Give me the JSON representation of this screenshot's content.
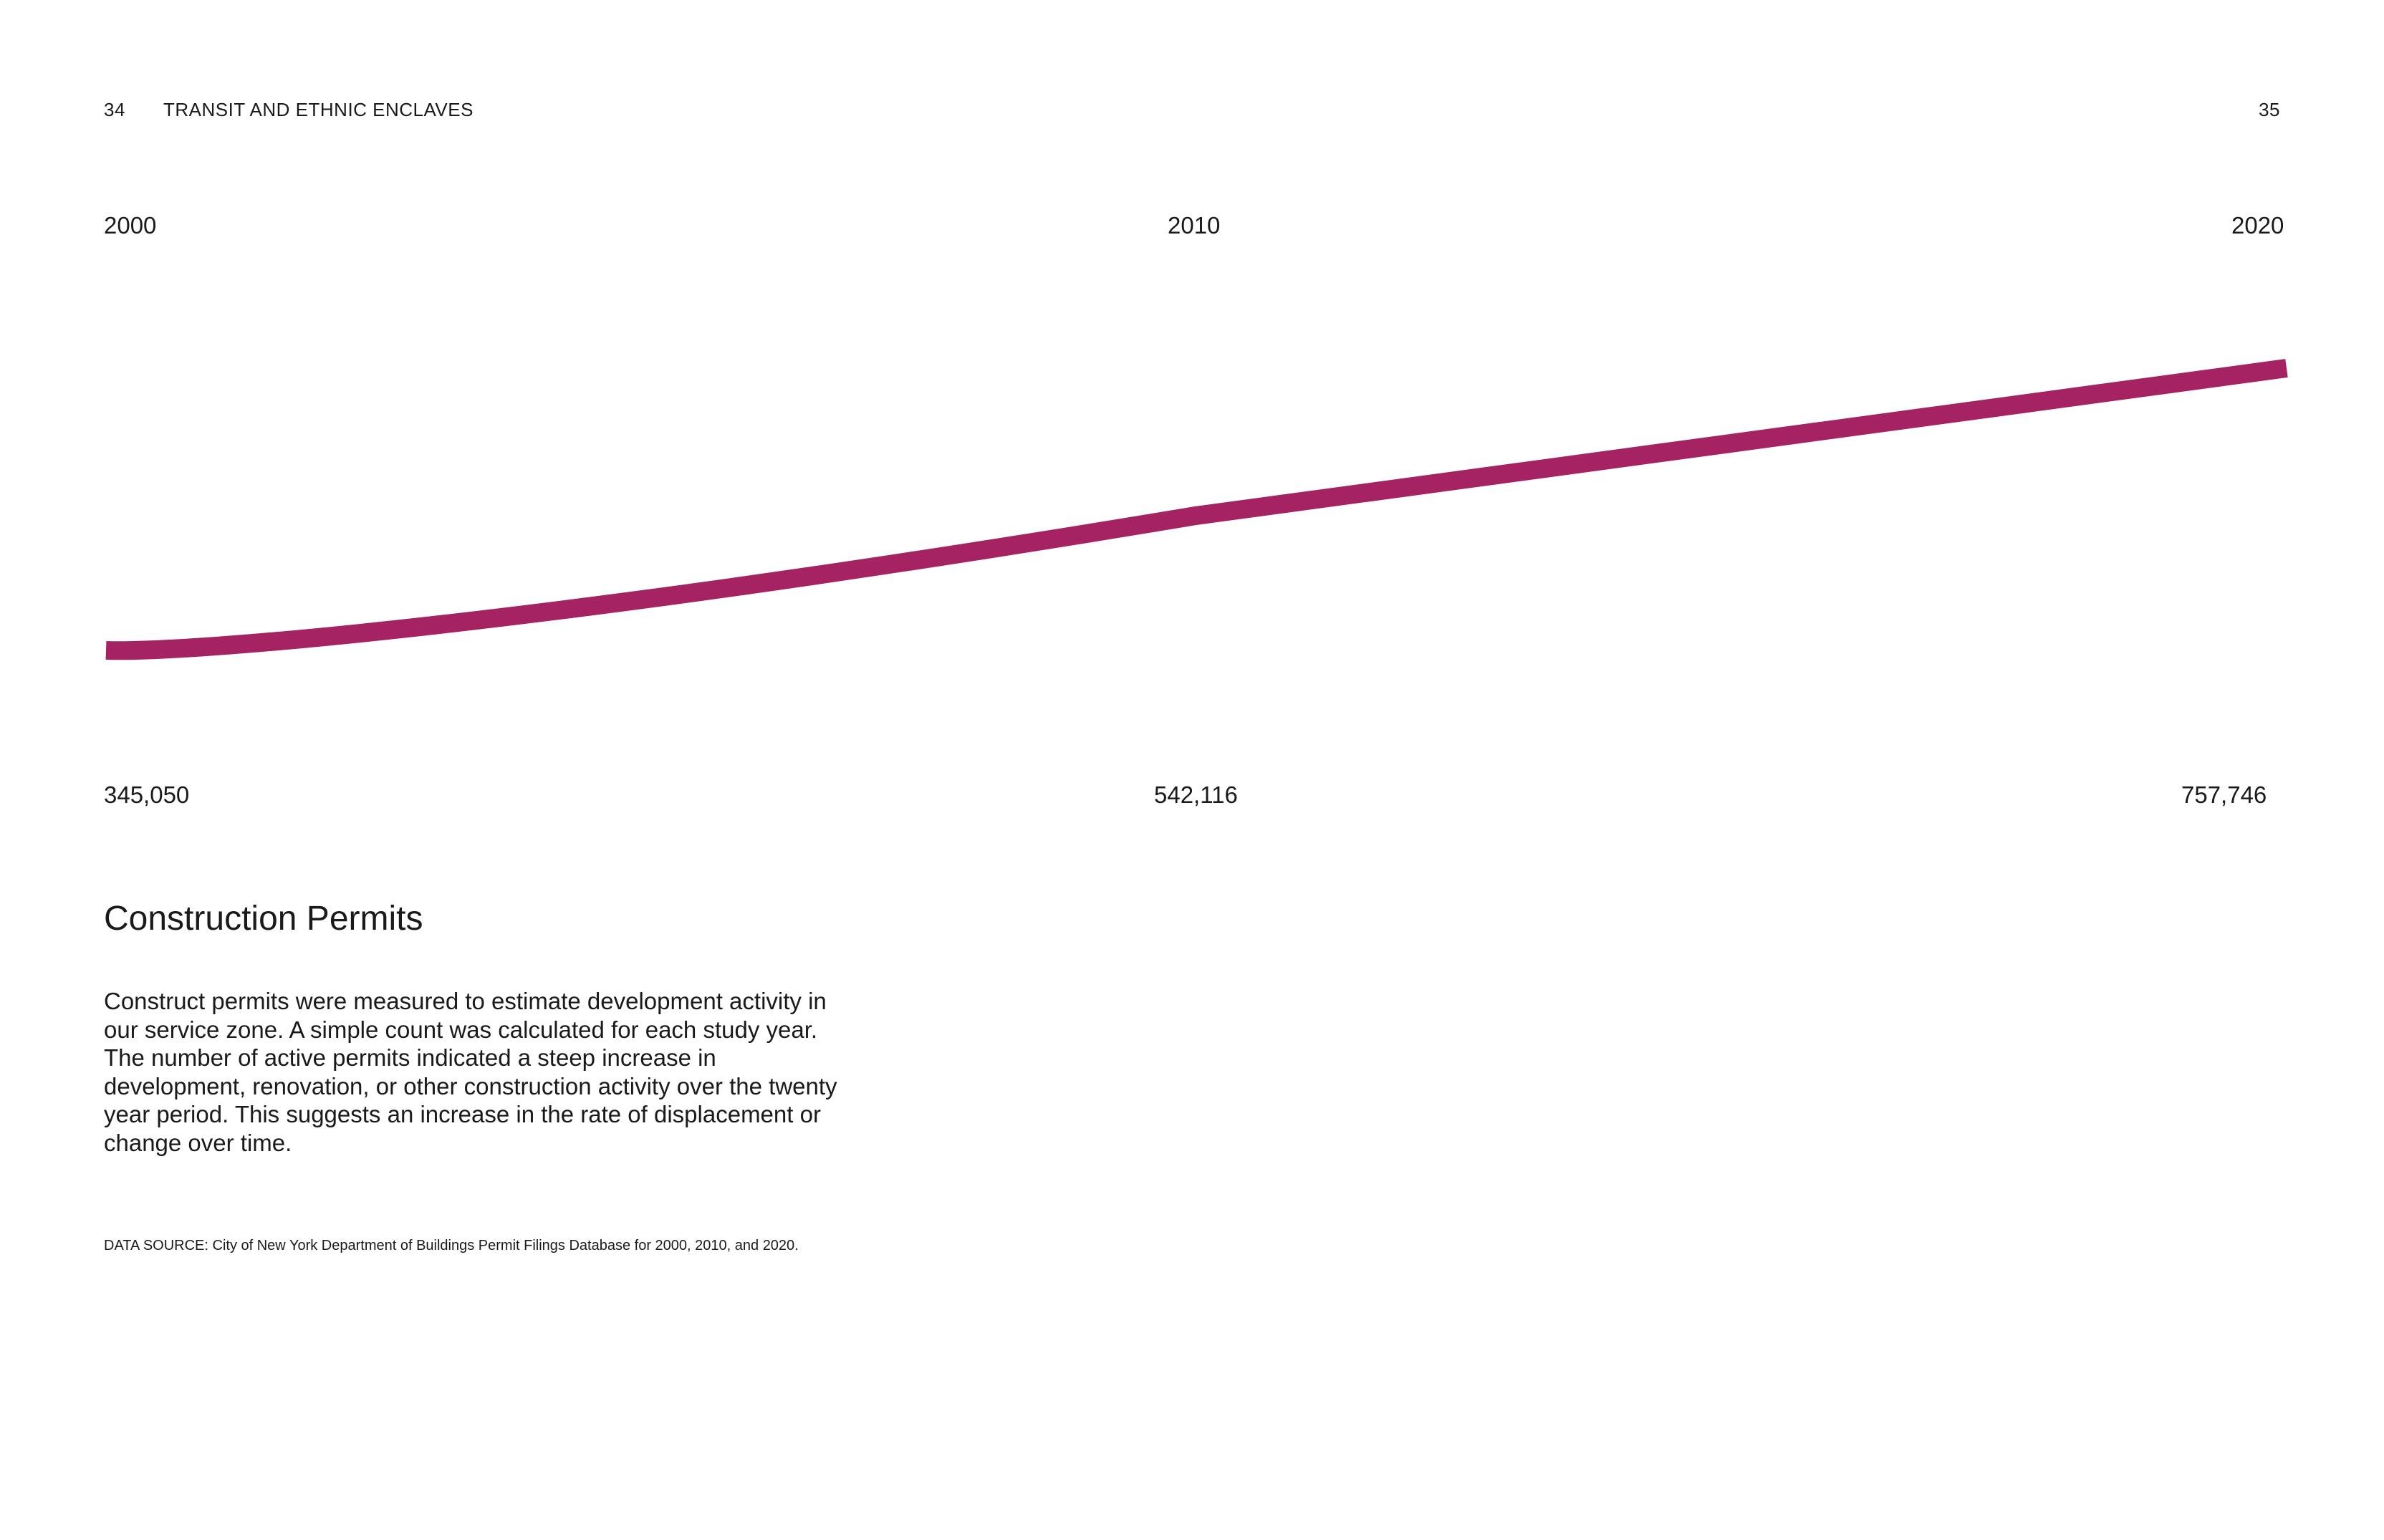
{
  "header": {
    "page_left": "34",
    "running_title": "TRANSIT AND ETHNIC ENCLAVES",
    "page_right": "35"
  },
  "chart_data": {
    "type": "line",
    "x": [
      "2000",
      "2010",
      "2020"
    ],
    "series": [
      {
        "values": [
          345050,
          542116,
          757746
        ],
        "labels": [
          "345,050",
          "542,116",
          "757,746"
        ],
        "color": "#a52363"
      }
    ],
    "title": "",
    "xlabel": "",
    "ylabel": "",
    "grid": false
  },
  "section": {
    "title": "Construction Permits",
    "body": "Construct permits were measured to estimate development activity in our service zone. A simple count was calculated for each study year. The number of active permits indicated a steep increase in development, renovation, or other construction activity over the twenty year period. This suggests an increase in the rate of displacement or change over time.",
    "data_source": "DATA SOURCE: City of New York Department of Buildings Permit Filings Database for 2000, 2010, and 2020."
  }
}
